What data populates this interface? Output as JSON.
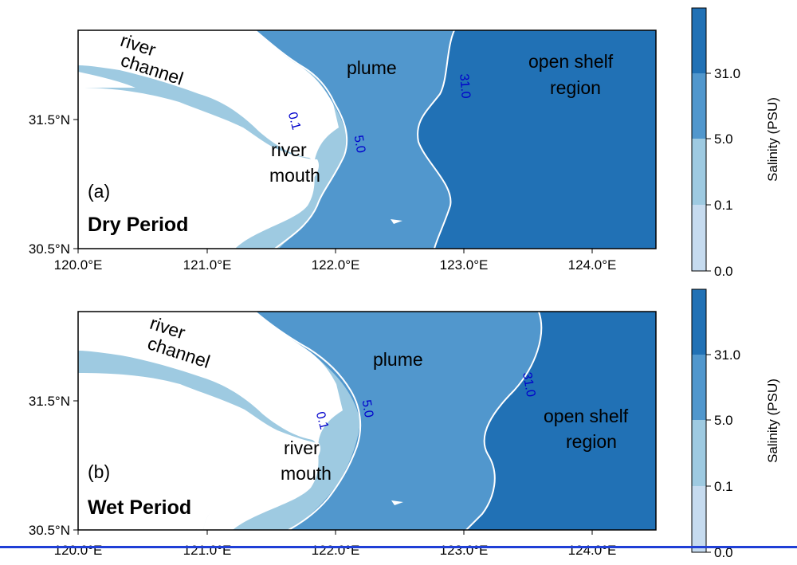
{
  "colors": {
    "land": "#ffffff",
    "class_0_0_1": "#c6dbef",
    "class_0_1_5": "#9ecae1",
    "class_5_31": "#5197cd",
    "class_31_plus": "#2171b5",
    "contour": "#ffffff",
    "contour_label": "#0000cc",
    "bottom_rule": "#1f3fd6"
  },
  "axes": {
    "x_ticks": [
      "120.0°E",
      "121.0°E",
      "122.0°E",
      "123.0°E",
      "124.0°E"
    ],
    "y_ticks": [
      "31.5°N",
      "30.5°N"
    ]
  },
  "colorbar": {
    "label": "Salinity (PSU)",
    "ticks": [
      "31.0",
      "5.0",
      "0.1",
      "0.0"
    ]
  },
  "panels": [
    {
      "letter": "(a)",
      "period": "Dry Period",
      "labels": {
        "river_channel_1": "river",
        "river_channel_2": "channel",
        "plume": "plume",
        "open_shelf_1": "open shelf",
        "open_shelf_2": "region",
        "river_mouth_1": "river",
        "river_mouth_2": "mouth"
      },
      "contours": [
        "0.1",
        "5.0",
        "31.0"
      ]
    },
    {
      "letter": "(b)",
      "period": "Wet Period",
      "labels": {
        "river_channel_1": "river",
        "river_channel_2": "channel",
        "plume": "plume",
        "open_shelf_1": "open shelf",
        "open_shelf_2": "region",
        "river_mouth_1": "river",
        "river_mouth_2": "mouth"
      },
      "contours": [
        "0.1",
        "5.0",
        "31.0"
      ]
    }
  ]
}
